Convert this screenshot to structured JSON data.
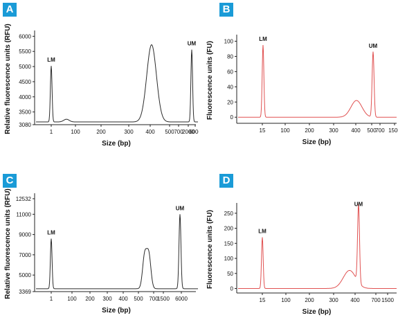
{
  "panels": [
    {
      "letter": "A",
      "color": "#2a2a2a"
    },
    {
      "letter": "B",
      "color": "#e05050"
    },
    {
      "letter": "C",
      "color": "#2a2a2a"
    },
    {
      "letter": "D",
      "color": "#e05050"
    }
  ],
  "chart_data": [
    {
      "type": "line",
      "panel": "A",
      "xlabel": "Size (bp)",
      "ylabel": "Relative fluorescence units (RFU)",
      "x_tick_labels": [
        "1",
        "100",
        "200",
        "300",
        "400",
        "500",
        "700",
        "2000",
        "6000"
      ],
      "y_ticks": [
        3080,
        3500,
        4000,
        4500,
        5000,
        5500,
        6000
      ],
      "ylim": [
        3080,
        6100
      ],
      "series_color": "#2a2a2a",
      "peaks": [
        {
          "label": "LM",
          "position": "1",
          "height": 5020
        },
        {
          "label": "",
          "position": "between 1 and 100",
          "height": 3260
        },
        {
          "label": "",
          "position": "~700",
          "height": 5720
        },
        {
          "label": "UM",
          "position": "6000",
          "height": 5560
        }
      ],
      "annotations": [
        "LM",
        "UM"
      ]
    },
    {
      "type": "line",
      "panel": "B",
      "xlabel": "Size (bp)",
      "ylabel": "Fluorescence units (FU)",
      "x_tick_labels": [
        "15",
        "100",
        "200",
        "300",
        "400",
        "500",
        "700",
        "1500"
      ],
      "y_ticks": [
        0,
        20,
        40,
        60,
        80,
        100
      ],
      "ylim": [
        -8,
        105
      ],
      "series_color": "#e05050",
      "peaks": [
        {
          "label": "LM",
          "position": "15",
          "height": 95
        },
        {
          "label": "",
          "position": "~700",
          "height": 22
        },
        {
          "label": "UM",
          "position": "1500",
          "height": 86
        }
      ],
      "annotations": [
        "LM",
        "UM"
      ]
    },
    {
      "type": "line",
      "panel": "C",
      "xlabel": "Size (bp)",
      "ylabel": "Relative fluorescence units (RFU)",
      "x_tick_labels": [
        "1",
        "100",
        "200",
        "300",
        "400",
        "500",
        "700",
        "1500",
        "6000"
      ],
      "y_ticks": [
        3369,
        5000,
        7000,
        9000,
        11000,
        12532
      ],
      "ylim": [
        3369,
        12800
      ],
      "series_color": "#2a2a2a",
      "peaks": [
        {
          "label": "LM",
          "position": "1",
          "height": 8600
        },
        {
          "label": "",
          "position": "~700",
          "height": 6900
        },
        {
          "label": "",
          "position": "~1000",
          "height": 6950
        },
        {
          "label": "UM",
          "position": "6000",
          "height": 11000
        }
      ],
      "annotations": [
        "LM",
        "UM"
      ]
    },
    {
      "type": "line",
      "panel": "D",
      "xlabel": "Size (bp)",
      "ylabel": "Fluorescence units (FU)",
      "x_tick_labels": [
        "15",
        "100",
        "200",
        "300",
        "400",
        "700",
        "1500"
      ],
      "y_ticks": [
        0,
        50,
        100,
        150,
        200,
        250
      ],
      "ylim": [
        -15,
        275
      ],
      "series_color": "#e05050",
      "peaks": [
        {
          "label": "LM",
          "position": "15",
          "height": 170
        },
        {
          "label": "",
          "position": "~700",
          "height": 60
        },
        {
          "label": "UM",
          "position": "1500",
          "height": 260
        }
      ],
      "annotations": [
        "LM",
        "UM"
      ]
    }
  ]
}
